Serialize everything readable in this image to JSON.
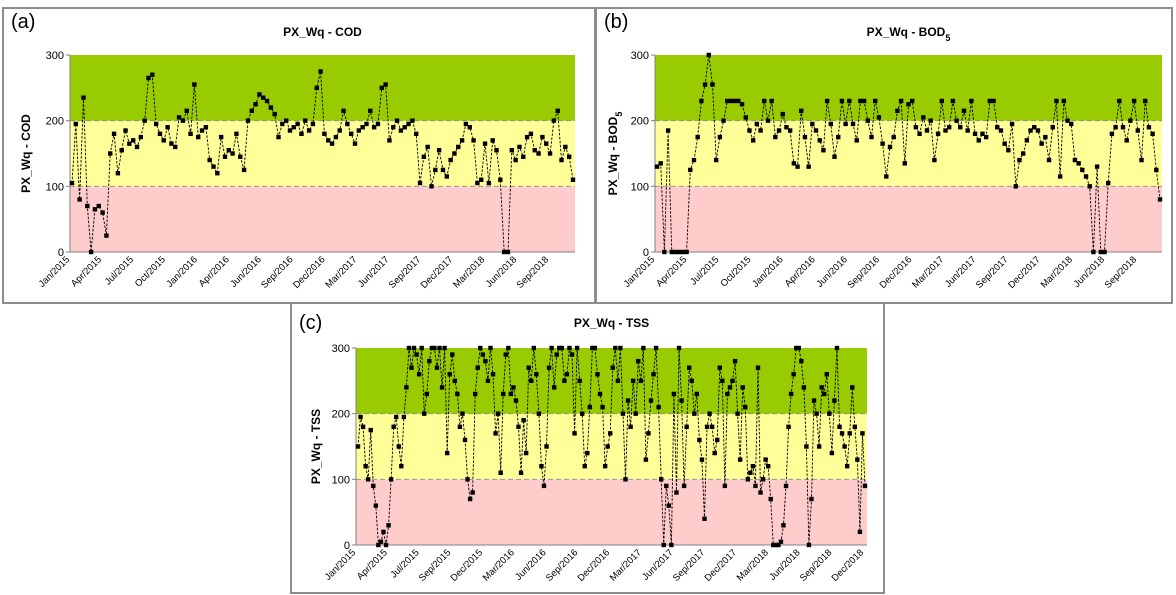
{
  "colors": {
    "good": "#99cc00",
    "fair": "#ffff99",
    "poor": "#ffcccc",
    "line": "#000000",
    "marker": "#000000"
  },
  "chart_data": [
    {
      "label": "(a)",
      "type": "line",
      "title": "PX_Wq - COD",
      "ylabel": "PX_Wq - COD",
      "subscript": "",
      "ylim": [
        0,
        300
      ],
      "yticks": [
        "0",
        "100",
        "200",
        "300"
      ],
      "bands": [
        {
          "from": 0,
          "to": 100,
          "color": "#ffcccc"
        },
        {
          "from": 100,
          "to": 200,
          "color": "#ffff99"
        },
        {
          "from": 200,
          "to": 300,
          "color": "#99cc00"
        }
      ],
      "xticks": [
        "Jan/2015",
        "Apr/2015",
        "Jul/2015",
        "Oct/2015",
        "Jan/2016",
        "Apr/2016",
        "Jun/2016",
        "Sep/2016",
        "Dec/2016",
        "Mar/2017",
        "Jun/2017",
        "Sep/2017",
        "Dec/2017",
        "Mar/2018",
        "Jun/2018",
        "Sep/2018"
      ],
      "values": [
        105,
        195,
        80,
        235,
        70,
        0,
        65,
        70,
        60,
        25,
        150,
        180,
        120,
        155,
        185,
        165,
        170,
        160,
        175,
        200,
        265,
        270,
        195,
        180,
        170,
        190,
        165,
        160,
        205,
        200,
        215,
        180,
        255,
        175,
        185,
        190,
        140,
        130,
        120,
        175,
        145,
        155,
        150,
        180,
        145,
        125,
        200,
        215,
        225,
        240,
        235,
        230,
        220,
        210,
        175,
        195,
        200,
        185,
        190,
        195,
        180,
        200,
        185,
        195,
        250,
        275,
        180,
        170,
        165,
        175,
        185,
        215,
        195,
        180,
        165,
        185,
        190,
        195,
        215,
        190,
        195,
        250,
        255,
        170,
        190,
        200,
        185,
        190,
        195,
        200,
        180,
        105,
        145,
        160,
        100,
        125,
        155,
        125,
        115,
        140,
        150,
        160,
        170,
        195,
        190,
        170,
        105,
        110,
        165,
        105,
        170,
        155,
        110,
        0,
        0,
        155,
        140,
        160,
        145,
        175,
        180,
        155,
        150,
        175,
        165,
        150,
        200,
        215,
        140,
        160,
        145,
        110
      ]
    },
    {
      "label": "(b)",
      "type": "line",
      "title": "PX_Wq - BOD",
      "ylabel": "PX_Wq - BOD",
      "subscript": "5",
      "ylim": [
        0,
        300
      ],
      "yticks": [
        "0",
        "100",
        "200",
        "300"
      ],
      "bands": [
        {
          "from": 0,
          "to": 100,
          "color": "#ffcccc"
        },
        {
          "from": 100,
          "to": 200,
          "color": "#ffff99"
        },
        {
          "from": 200,
          "to": 300,
          "color": "#99cc00"
        }
      ],
      "xticks": [
        "Jan/2015",
        "Apr/2015",
        "Jul/2015",
        "Oct/2015",
        "Jan/2016",
        "Apr/2016",
        "Jun/2016",
        "Sep/2016",
        "Dec/2016",
        "Mar/2017",
        "Jun/2017",
        "Sep/2017",
        "Dec/2017",
        "Mar/2018",
        "Jun/2018",
        "Sep/2018"
      ],
      "values": [
        130,
        135,
        0,
        185,
        0,
        0,
        0,
        0,
        0,
        125,
        140,
        175,
        230,
        255,
        300,
        255,
        140,
        175,
        200,
        230,
        230,
        230,
        230,
        225,
        205,
        185,
        170,
        195,
        185,
        230,
        200,
        230,
        175,
        185,
        210,
        190,
        185,
        135,
        130,
        215,
        175,
        130,
        195,
        185,
        170,
        155,
        230,
        195,
        145,
        175,
        230,
        195,
        230,
        195,
        170,
        230,
        230,
        200,
        175,
        230,
        205,
        165,
        115,
        160,
        175,
        215,
        230,
        135,
        225,
        230,
        190,
        180,
        205,
        185,
        200,
        140,
        180,
        230,
        185,
        190,
        230,
        200,
        190,
        215,
        185,
        230,
        180,
        170,
        180,
        175,
        230,
        230,
        190,
        185,
        165,
        155,
        195,
        100,
        140,
        150,
        170,
        185,
        190,
        185,
        165,
        175,
        140,
        190,
        230,
        115,
        230,
        200,
        195,
        140,
        135,
        125,
        115,
        100,
        0,
        130,
        0,
        0,
        105,
        180,
        190,
        230,
        190,
        170,
        200,
        230,
        185,
        140,
        230,
        190,
        180,
        125,
        80
      ]
    },
    {
      "label": "(c)",
      "type": "line",
      "title": "PX_Wq - TSS",
      "ylabel": "PX_Wq - TSS",
      "subscript": "",
      "ylim": [
        0,
        300
      ],
      "yticks": [
        "0",
        "100",
        "200",
        "300"
      ],
      "bands": [
        {
          "from": 0,
          "to": 100,
          "color": "#ffcccc"
        },
        {
          "from": 100,
          "to": 200,
          "color": "#ffff99"
        },
        {
          "from": 200,
          "to": 300,
          "color": "#99cc00"
        }
      ],
      "xticks": [
        "Jan/2015",
        "Apr/2015",
        "Jul/2015",
        "Sep/2015",
        "Dec/2015",
        "Mar/2016",
        "Jun/2016",
        "Sep/2016",
        "Dec/2016",
        "Mar/2017",
        "Jun/2017",
        "Sep/2017",
        "Dec/2017",
        "Mar/2018",
        "Jun/2018",
        "Sep/2018",
        "Dec/2018"
      ],
      "values": [
        150,
        195,
        180,
        120,
        100,
        175,
        90,
        60,
        0,
        5,
        20,
        0,
        30,
        100,
        180,
        195,
        150,
        120,
        195,
        240,
        300,
        270,
        300,
        290,
        260,
        300,
        200,
        230,
        280,
        300,
        300,
        270,
        300,
        240,
        300,
        140,
        260,
        290,
        250,
        230,
        180,
        200,
        160,
        100,
        70,
        80,
        230,
        270,
        300,
        290,
        280,
        250,
        300,
        260,
        170,
        200,
        110,
        230,
        290,
        300,
        230,
        240,
        220,
        180,
        110,
        190,
        140,
        270,
        250,
        300,
        260,
        200,
        120,
        90,
        150,
        270,
        300,
        240,
        290,
        300,
        300,
        250,
        260,
        300,
        290,
        170,
        300,
        250,
        200,
        120,
        140,
        210,
        300,
        300,
        260,
        230,
        210,
        120,
        150,
        170,
        270,
        300,
        250,
        300,
        200,
        100,
        220,
        180,
        250,
        200,
        280,
        250,
        300,
        130,
        170,
        220,
        260,
        300,
        210,
        100,
        0,
        90,
        60,
        0,
        230,
        80,
        300,
        220,
        90,
        180,
        270,
        250,
        200,
        230,
        160,
        130,
        40,
        180,
        200,
        180,
        140,
        160,
        270,
        250,
        90,
        230,
        240,
        250,
        280,
        200,
        130,
        240,
        210,
        100,
        110,
        120,
        90,
        270,
        80,
        100,
        130,
        120,
        70,
        0,
        0,
        0,
        5,
        30,
        90,
        180,
        230,
        260,
        300,
        300,
        280,
        240,
        150,
        0,
        70,
        220,
        200,
        150,
        240,
        230,
        260,
        200,
        140,
        220,
        300,
        180,
        170,
        150,
        120,
        170,
        240,
        180,
        130,
        20,
        170,
        90
      ]
    }
  ]
}
